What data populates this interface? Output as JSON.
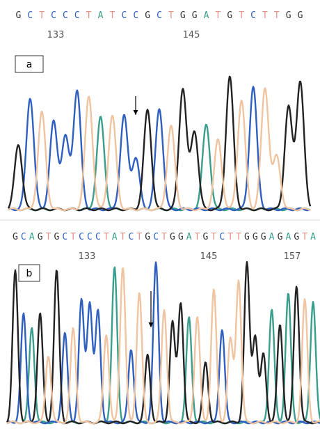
{
  "panels": [
    {
      "label": "a",
      "sequence": [
        "G",
        "C",
        "T",
        "C",
        "C",
        "C",
        "T",
        "A",
        "T",
        "C",
        "C",
        "G",
        "C",
        "T",
        "G",
        "G",
        "A",
        "T",
        "G",
        "T",
        "C",
        "T",
        "T",
        "G",
        "G"
      ],
      "positions": [
        "133",
        "145"
      ]
    },
    {
      "label": "b",
      "sequence": [
        "G",
        "C",
        "A",
        "G",
        "T",
        "G",
        "C",
        "T",
        "C",
        "C",
        "C",
        "T",
        "A",
        "T",
        "C",
        "T",
        "G",
        "C",
        "T",
        "G",
        "G",
        "A",
        "T",
        "G",
        "T",
        "C",
        "T",
        "T",
        "G",
        "G",
        "G",
        "A",
        "G",
        "A",
        "G",
        "T",
        "A"
      ],
      "positions": [
        "133",
        "145",
        "157"
      ]
    }
  ],
  "base_colors": {
    "A": "#3a9e8c",
    "C": "#2f5fbf",
    "G": "#222222",
    "T": "#f0c4a0"
  },
  "text_colors": {
    "A": "#3a9e8c",
    "C": "#2f5fbf",
    "G": "#333333",
    "T": "#e58f86"
  }
}
